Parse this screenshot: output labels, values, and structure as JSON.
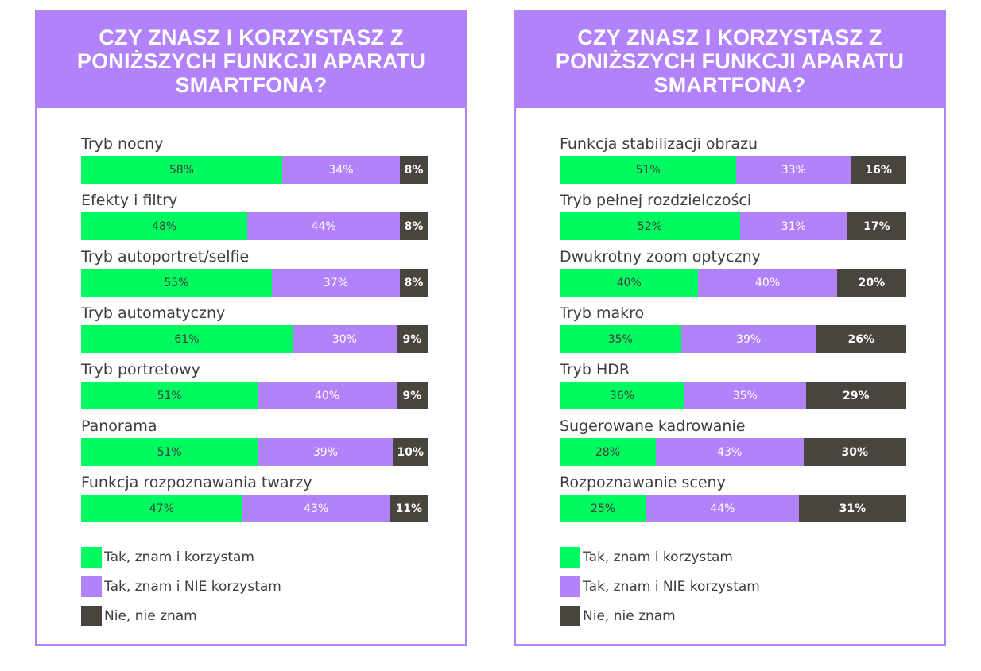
{
  "colors": {
    "green": "#00fa5f",
    "purple": "#b282fa",
    "dark": "#48443e"
  },
  "legend": [
    {
      "label": "Tak, znam i korzystam",
      "color_key": "green"
    },
    {
      "label": "Tak, znam i NIE korzystam",
      "color_key": "purple"
    },
    {
      "label": "Nie, nie znam",
      "color_key": "dark"
    }
  ],
  "chart_data": [
    {
      "type": "bar",
      "orientation": "horizontal",
      "stacked": true,
      "title": "CZY ZNASZ I KORZYSTASZ Z PONIŻSZYCH FUNKCJI APARATU SMARTFONA?",
      "xlim": [
        0,
        100
      ],
      "categories": [
        "Tryb nocny",
        "Efekty i filtry",
        "Tryb autoportret/selfie",
        "Tryb automatyczny",
        "Tryb portretowy",
        "Panorama",
        "Funkcja rozpoznawania twarzy"
      ],
      "series": [
        {
          "name": "Tak, znam i korzystam",
          "values": [
            58,
            48,
            55,
            61,
            51,
            51,
            47
          ]
        },
        {
          "name": "Tak, znam i NIE korzystam",
          "values": [
            34,
            44,
            37,
            30,
            40,
            39,
            43
          ]
        },
        {
          "name": "Nie, nie znam",
          "values": [
            8,
            8,
            8,
            9,
            9,
            10,
            11
          ]
        }
      ],
      "legend": "bottom-left"
    },
    {
      "type": "bar",
      "orientation": "horizontal",
      "stacked": true,
      "title": "CZY ZNASZ I KORZYSTASZ Z PONIŻSZYCH FUNKCJI APARATU SMARTFONA?",
      "xlim": [
        0,
        100
      ],
      "categories": [
        "Funkcja stabilizacji obrazu",
        "Tryb pełnej rozdzielczości",
        "Dwukrotny zoom optyczny",
        "Tryb makro",
        "Tryb HDR",
        "Sugerowane kadrowanie",
        "Rozpoznawanie sceny"
      ],
      "series": [
        {
          "name": "Tak, znam i korzystam",
          "values": [
            51,
            52,
            40,
            35,
            36,
            28,
            25
          ]
        },
        {
          "name": "Tak, znam i NIE korzystam",
          "values": [
            33,
            31,
            40,
            39,
            35,
            43,
            44
          ]
        },
        {
          "name": "Nie, nie znam",
          "values": [
            16,
            17,
            20,
            26,
            29,
            30,
            31
          ]
        }
      ],
      "legend": "bottom-left"
    }
  ]
}
